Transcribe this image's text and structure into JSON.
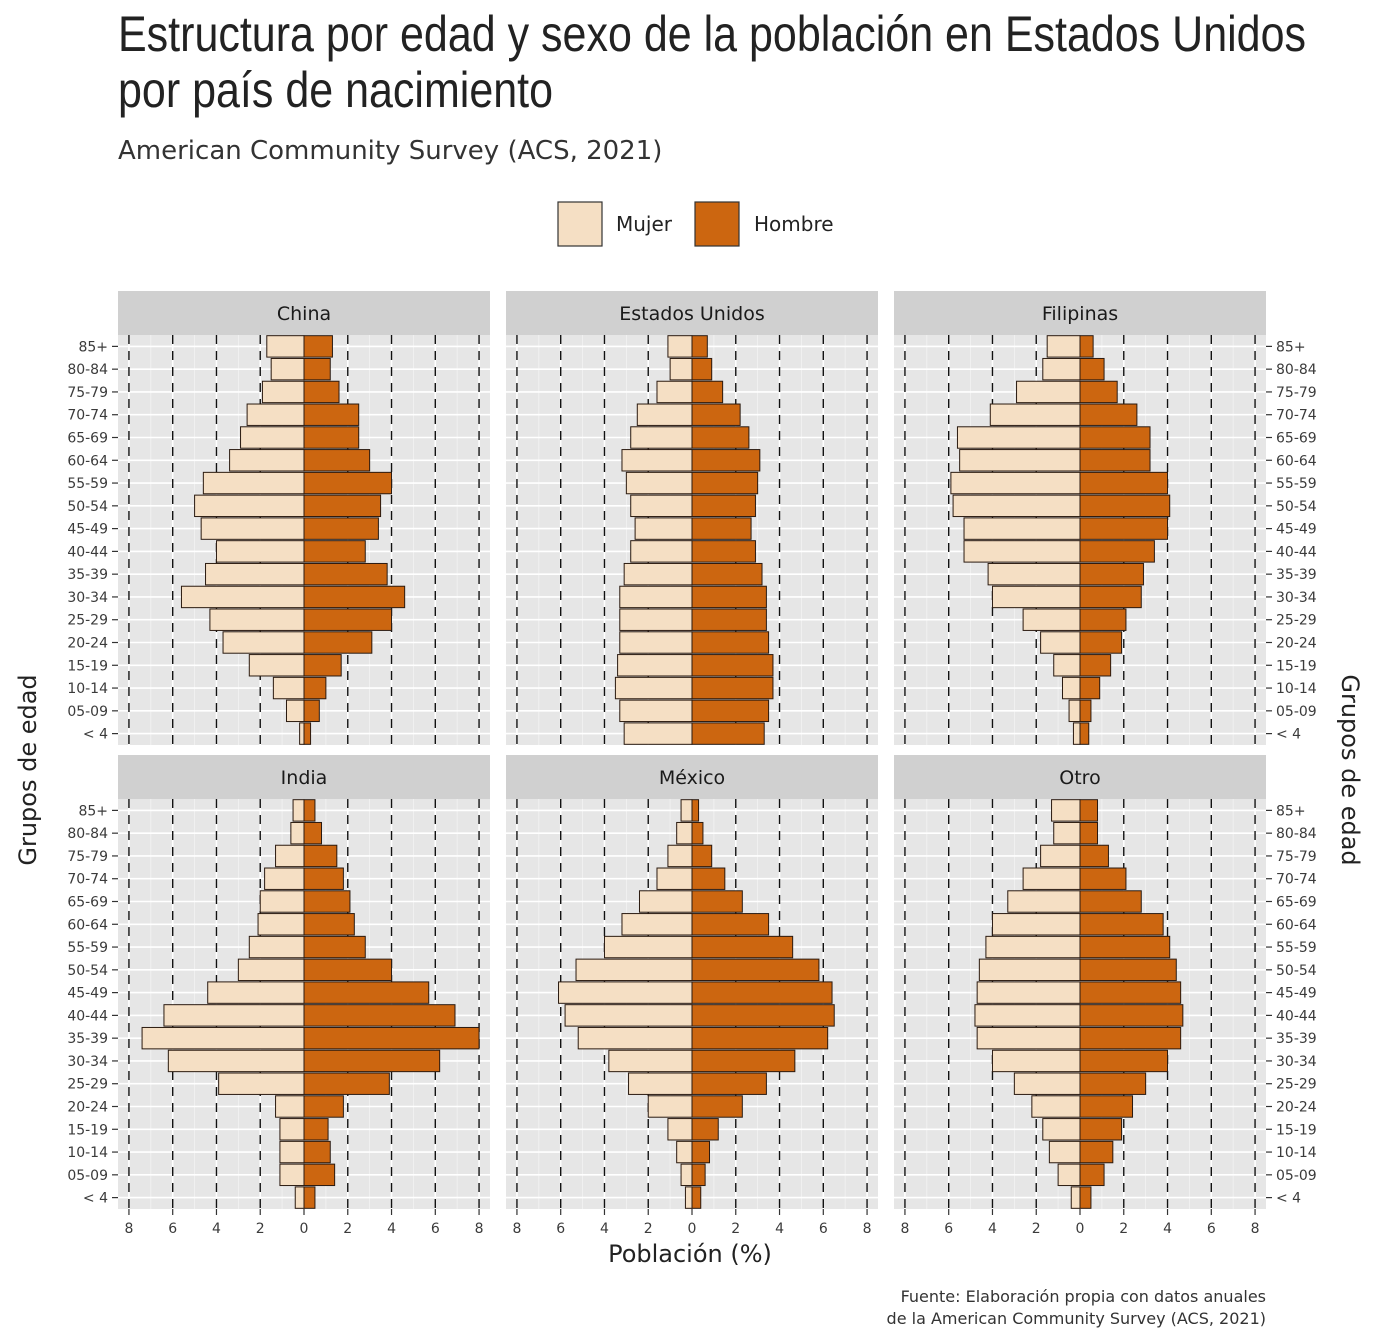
{
  "title_lines": [
    "Estructura por edad y sexo de la población en Estados Unidos",
    "por país de nacimiento"
  ],
  "subtitle": "American Community Survey (ACS, 2021)",
  "caption_lines": [
    "Fuente: Elaboración propia con datos anuales",
    "de la American Community Survey (ACS, 2021)"
  ],
  "colors": {
    "mujer": "#F5DFC4",
    "hombre": "#CC6610",
    "panel_bg": "#E6E6E6",
    "strip_bg": "#D0D0D0",
    "bar_outline": "#2A1A10"
  },
  "chart_data": {
    "type": "bar",
    "orientation": "horizontal",
    "layout": "facet grid 2x3 (population pyramids)",
    "xlabel": "Población (%)",
    "ylabel": "Grupos de edad",
    "xlim": [
      -8.5,
      8.5
    ],
    "x_ticks": [
      -8,
      -6,
      -4,
      -2,
      0,
      2,
      4,
      6,
      8
    ],
    "x_tick_labels": [
      "8",
      "6",
      "4",
      "2",
      "0",
      "2",
      "4",
      "6",
      "8"
    ],
    "dashed_lines_at": [
      -8,
      -6,
      -4,
      -2,
      2,
      4,
      6,
      8
    ],
    "legend": {
      "position": "top",
      "entries": [
        "Mujer",
        "Hombre"
      ]
    },
    "categories": [
      "< 4",
      "05-09",
      "10-14",
      "15-19",
      "20-24",
      "25-29",
      "30-34",
      "35-39",
      "40-44",
      "45-49",
      "50-54",
      "55-59",
      "60-64",
      "65-69",
      "70-74",
      "75-79",
      "80-84",
      "85+"
    ],
    "panels": [
      {
        "name": "China",
        "series": [
          {
            "name": "Mujer",
            "values": [
              0.2,
              0.8,
              1.4,
              2.5,
              3.7,
              4.3,
              5.6,
              4.5,
              4.0,
              4.7,
              5.0,
              4.6,
              3.4,
              2.9,
              2.6,
              1.9,
              1.5,
              1.7
            ]
          },
          {
            "name": "Hombre",
            "values": [
              0.3,
              0.7,
              1.0,
              1.7,
              3.1,
              4.0,
              4.6,
              3.8,
              2.8,
              3.4,
              3.5,
              4.0,
              3.0,
              2.5,
              2.5,
              1.6,
              1.2,
              1.3
            ]
          }
        ]
      },
      {
        "name": "Estados Unidos",
        "series": [
          {
            "name": "Mujer",
            "values": [
              3.1,
              3.3,
              3.5,
              3.4,
              3.3,
              3.3,
              3.3,
              3.1,
              2.8,
              2.6,
              2.8,
              3.0,
              3.2,
              2.8,
              2.5,
              1.6,
              1.0,
              1.1
            ]
          },
          {
            "name": "Hombre",
            "values": [
              3.3,
              3.5,
              3.7,
              3.7,
              3.5,
              3.4,
              3.4,
              3.2,
              2.9,
              2.7,
              2.9,
              3.0,
              3.1,
              2.6,
              2.2,
              1.4,
              0.9,
              0.7
            ]
          }
        ]
      },
      {
        "name": "Filipinas",
        "series": [
          {
            "name": "Mujer",
            "values": [
              0.3,
              0.5,
              0.8,
              1.2,
              1.8,
              2.6,
              4.0,
              4.2,
              5.3,
              5.3,
              5.8,
              5.9,
              5.5,
              5.6,
              4.1,
              2.9,
              1.7,
              1.5
            ]
          },
          {
            "name": "Hombre",
            "values": [
              0.4,
              0.5,
              0.9,
              1.4,
              1.9,
              2.1,
              2.8,
              2.9,
              3.4,
              4.0,
              4.1,
              4.0,
              3.2,
              3.2,
              2.6,
              1.7,
              1.1,
              0.6
            ]
          }
        ]
      },
      {
        "name": "India",
        "series": [
          {
            "name": "Mujer",
            "values": [
              0.4,
              1.1,
              1.1,
              1.1,
              1.3,
              3.9,
              6.2,
              7.4,
              6.4,
              4.4,
              3.0,
              2.5,
              2.1,
              2.0,
              1.8,
              1.3,
              0.6,
              0.5
            ]
          },
          {
            "name": "Hombre",
            "values": [
              0.5,
              1.4,
              1.2,
              1.1,
              1.8,
              3.9,
              6.2,
              8.0,
              6.9,
              5.7,
              4.0,
              2.8,
              2.3,
              2.1,
              1.8,
              1.5,
              0.8,
              0.5
            ]
          }
        ]
      },
      {
        "name": "México",
        "series": [
          {
            "name": "Mujer",
            "values": [
              0.3,
              0.5,
              0.7,
              1.1,
              2.0,
              2.9,
              3.8,
              5.2,
              5.8,
              6.1,
              5.3,
              4.0,
              3.2,
              2.4,
              1.6,
              1.1,
              0.7,
              0.5
            ]
          },
          {
            "name": "Hombre",
            "values": [
              0.4,
              0.6,
              0.8,
              1.2,
              2.3,
              3.4,
              4.7,
              6.2,
              6.5,
              6.4,
              5.8,
              4.6,
              3.5,
              2.3,
              1.5,
              0.9,
              0.5,
              0.3
            ]
          }
        ]
      },
      {
        "name": "Otro",
        "series": [
          {
            "name": "Mujer",
            "values": [
              0.4,
              1.0,
              1.4,
              1.7,
              2.2,
              3.0,
              4.0,
              4.7,
              4.8,
              4.7,
              4.6,
              4.3,
              4.0,
              3.3,
              2.6,
              1.8,
              1.2,
              1.3
            ]
          },
          {
            "name": "Hombre",
            "values": [
              0.5,
              1.1,
              1.5,
              1.9,
              2.4,
              3.0,
              4.0,
              4.6,
              4.7,
              4.6,
              4.4,
              4.1,
              3.8,
              2.8,
              2.1,
              1.3,
              0.8,
              0.8
            ]
          }
        ]
      }
    ]
  }
}
